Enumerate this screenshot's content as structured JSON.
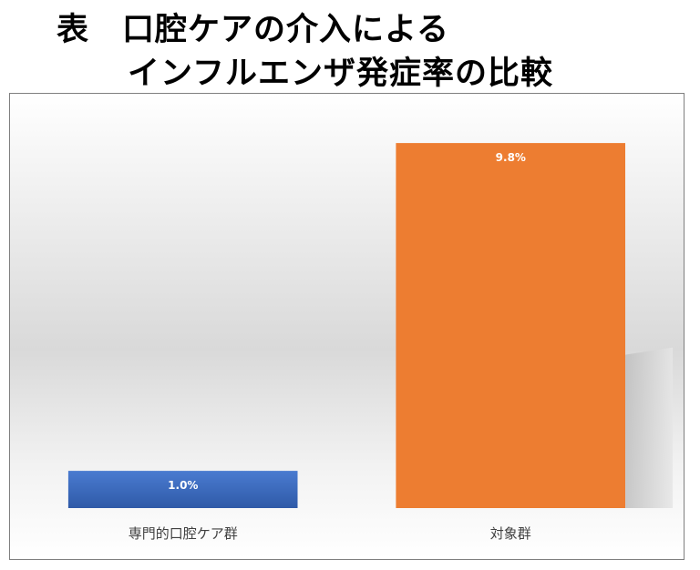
{
  "title": {
    "line1": "表　口腔ケアの介入による",
    "line2": "インフルエンザ発症率の比較"
  },
  "colors": {
    "series_colors": [
      "#4472c4",
      "#ed7d31"
    ],
    "label_text": "#ffffff",
    "axis_text": "#404040"
  },
  "chart_data": {
    "type": "bar",
    "categories": [
      "専門的口腔ケア群",
      "対象群"
    ],
    "values": [
      1.0,
      9.8
    ],
    "data_labels": [
      "1.0%",
      "9.8%"
    ],
    "ylim": [
      0,
      11
    ],
    "grid": false,
    "legend": "none"
  }
}
